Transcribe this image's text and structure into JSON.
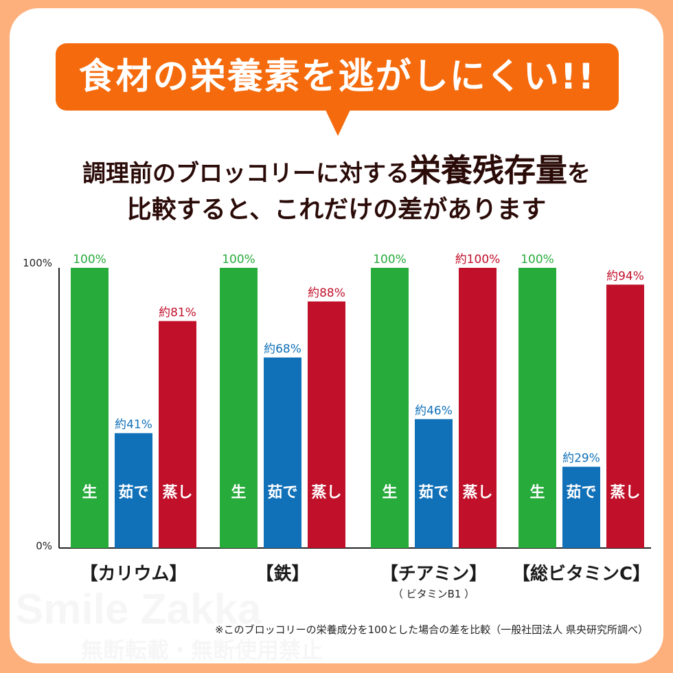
{
  "headline": "食材の栄養素を逃がしにくい!!",
  "subtitle": {
    "line1_pre": "調理前のブロッコリーに対する",
    "line1_emphasis": "栄養残存量",
    "line1_post": "を",
    "line2": "比較すると、これだけの差があります"
  },
  "colors": {
    "raw": "#27ab3b",
    "boiled": "#1070b8",
    "steamed": "#c0102a",
    "accent": "#f46a0c",
    "border": "#fdb07c"
  },
  "chart_data": {
    "type": "bar",
    "ylim": [
      0,
      100
    ],
    "yticks": [
      "0%",
      "100%"
    ],
    "grid": false,
    "categories": [
      "【カリウム】",
      "【鉄】",
      "【チアミン】",
      "【総ビタミンC】"
    ],
    "category_sublabels": [
      "",
      "",
      "（ ビタミンB1 ）",
      ""
    ],
    "series": [
      {
        "name": "生",
        "values": [
          100,
          100,
          100,
          100
        ],
        "labels": [
          "100%",
          "100%",
          "100%",
          "100%"
        ]
      },
      {
        "name": "茹で",
        "values": [
          41,
          68,
          46,
          29
        ],
        "labels": [
          "約41%",
          "約68%",
          "約46%",
          "約29%"
        ]
      },
      {
        "name": "蒸し",
        "values": [
          81,
          88,
          100,
          94
        ],
        "labels": [
          "約81%",
          "約88%",
          "約100%",
          "約94%"
        ]
      }
    ]
  },
  "footnote": "※このブロッコリーの栄養成分を100とした場合の差を比較（一般社団法人 県央研究所調べ）",
  "watermark": {
    "brand": "Smile Zakka",
    "notice": "無断転載・無断使用禁止"
  }
}
